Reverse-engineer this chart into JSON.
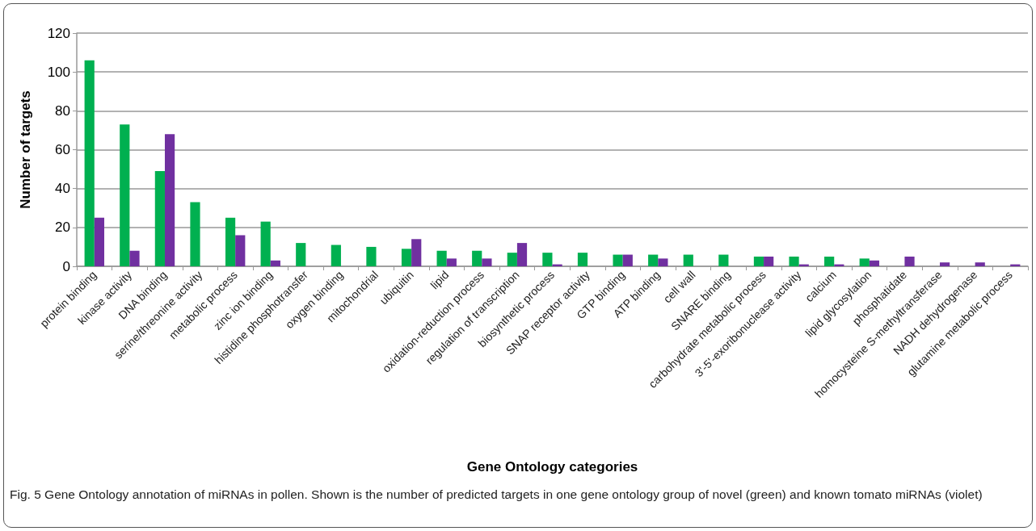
{
  "chart_data": {
    "type": "bar",
    "xlabel": "Gene Ontology categories",
    "ylabel": "Number of targets",
    "categories": [
      "protein binding",
      "kinase activity",
      "DNA binding",
      "serine/threonine activity",
      "metabolic process",
      "zinc ion binding",
      "histidine phosphotransfer",
      "oxygen binding",
      "mitochondrial",
      "ubiquitin",
      "lipid",
      "oxidation-reduction process",
      "regulation of transcription",
      "biosynthetic process",
      "SNAP receptor activity",
      "GTP binding",
      "ATP binding",
      "cell wall",
      "SNARE binding",
      "carbohydrate metabolic process",
      "3'-5'-exoribonuclease activity",
      "calcium",
      "lipid glycosylation",
      "phosphatidate",
      "homocysteine S-methyltransferase",
      "NADH dehydrogenase",
      "glutamine metabolic process"
    ],
    "series": [
      {
        "color": "#00b050",
        "values": [
          106,
          73,
          49,
          33,
          25,
          23,
          12,
          11,
          10,
          9,
          8,
          8,
          7,
          7,
          7,
          6,
          6,
          6,
          6,
          5,
          5,
          5,
          4,
          0,
          0,
          0,
          0
        ]
      },
      {
        "color": "#7030a0",
        "values": [
          25,
          8,
          68,
          0,
          16,
          3,
          0,
          0,
          0,
          14,
          4,
          4,
          12,
          1,
          0,
          6,
          4,
          0,
          0,
          5,
          1,
          1,
          3,
          5,
          2,
          2,
          1
        ]
      }
    ],
    "ylim": [
      0,
      120
    ],
    "yticks": [
      0,
      20,
      40,
      60,
      80,
      100,
      120
    ],
    "grid": "y",
    "annotations": [
      "Fig. 5 Gene Ontology annotation of miRNAs in pollen. Shown is the number of predicted targets in one gene ontology group of novel (green) and known tomato miRNAs (violet)"
    ]
  }
}
